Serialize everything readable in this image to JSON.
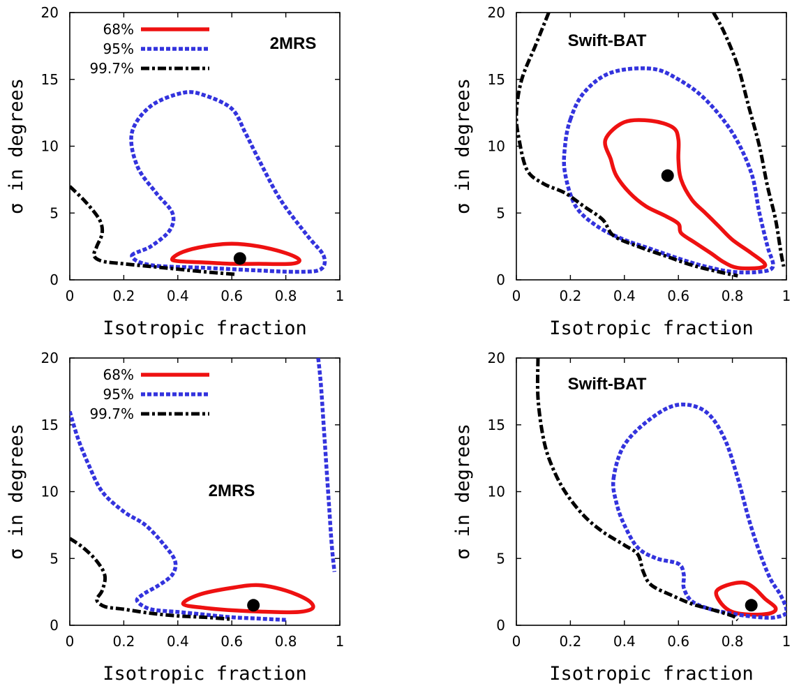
{
  "chart_data": [
    {
      "type": "contour",
      "title": "2MRS",
      "xlabel": "Isotropic fraction",
      "ylabel": "σ in degrees",
      "xlim": [
        0,
        1
      ],
      "ylim": [
        0,
        20
      ],
      "xticks": [
        "0",
        "0.2",
        "0.4",
        "0.6",
        "0.8",
        "1"
      ],
      "yticks": [
        "0",
        "5",
        "10",
        "15",
        "20"
      ],
      "legend": {
        "placement": "top-left",
        "entries": [
          "68%",
          "95%",
          "99.7%"
        ]
      },
      "colors": {
        "c68": "#ee1111",
        "c95": "#3333dd",
        "c997": "#000000"
      },
      "best_fit": [
        0.63,
        1.6
      ],
      "series": [
        {
          "name": "68%",
          "closed": true,
          "points": [
            [
              0.38,
              1.6
            ],
            [
              0.42,
              2.1
            ],
            [
              0.5,
              2.5
            ],
            [
              0.6,
              2.7
            ],
            [
              0.7,
              2.5
            ],
            [
              0.8,
              2.0
            ],
            [
              0.85,
              1.5
            ],
            [
              0.82,
              1.2
            ],
            [
              0.7,
              1.2
            ],
            [
              0.6,
              1.2
            ],
            [
              0.5,
              1.3
            ],
            [
              0.4,
              1.4
            ],
            [
              0.38,
              1.6
            ]
          ]
        },
        {
          "name": "95%",
          "closed": true,
          "points": [
            [
              0.23,
              1.8
            ],
            [
              0.3,
              2.5
            ],
            [
              0.37,
              3.7
            ],
            [
              0.38,
              5.0
            ],
            [
              0.32,
              6.5
            ],
            [
              0.25,
              8.5
            ],
            [
              0.23,
              11.0
            ],
            [
              0.3,
              13.0
            ],
            [
              0.42,
              14.0
            ],
            [
              0.5,
              13.8
            ],
            [
              0.6,
              12.8
            ],
            [
              0.65,
              11.0
            ],
            [
              0.7,
              9.0
            ],
            [
              0.78,
              6.0
            ],
            [
              0.88,
              3.3
            ],
            [
              0.94,
              1.8
            ],
            [
              0.93,
              0.8
            ],
            [
              0.85,
              0.6
            ],
            [
              0.7,
              0.7
            ],
            [
              0.5,
              0.9
            ],
            [
              0.3,
              1.1
            ],
            [
              0.23,
              1.8
            ]
          ]
        },
        {
          "name": "99.7%",
          "closed": false,
          "points": [
            [
              0.0,
              7.0
            ],
            [
              0.06,
              5.8
            ],
            [
              0.11,
              4.5
            ],
            [
              0.12,
              3.5
            ],
            [
              0.1,
              2.5
            ],
            [
              0.09,
              1.8
            ],
            [
              0.12,
              1.4
            ],
            [
              0.2,
              1.2
            ],
            [
              0.3,
              1.0
            ],
            [
              0.4,
              0.8
            ],
            [
              0.5,
              0.6
            ],
            [
              0.62,
              0.4
            ]
          ]
        }
      ]
    },
    {
      "type": "contour",
      "title": "Swift-BAT",
      "xlabel": "Isotropic fraction",
      "ylabel": "σ in degrees",
      "xlim": [
        0,
        1
      ],
      "ylim": [
        0,
        20
      ],
      "xticks": [
        "0",
        "0.2",
        "0.4",
        "0.6",
        "0.8",
        "1"
      ],
      "yticks": [
        "0",
        "5",
        "10",
        "15",
        "20"
      ],
      "legend": null,
      "colors": {
        "c68": "#ee1111",
        "c95": "#3333dd",
        "c997": "#000000"
      },
      "best_fit": [
        0.56,
        7.8
      ],
      "series": [
        {
          "name": "68%",
          "closed": true,
          "points": [
            [
              0.35,
              9.0
            ],
            [
              0.33,
              10.5
            ],
            [
              0.4,
              11.8
            ],
            [
              0.5,
              11.9
            ],
            [
              0.58,
              11.4
            ],
            [
              0.6,
              10.5
            ],
            [
              0.6,
              9.0
            ],
            [
              0.61,
              7.5
            ],
            [
              0.65,
              6.0
            ],
            [
              0.7,
              5.0
            ],
            [
              0.75,
              4.0
            ],
            [
              0.8,
              3.0
            ],
            [
              0.87,
              2.0
            ],
            [
              0.92,
              1.2
            ],
            [
              0.9,
              0.9
            ],
            [
              0.82,
              0.9
            ],
            [
              0.77,
              1.3
            ],
            [
              0.72,
              2.0
            ],
            [
              0.66,
              2.8
            ],
            [
              0.61,
              3.5
            ],
            [
              0.6,
              4.2
            ],
            [
              0.55,
              4.8
            ],
            [
              0.48,
              5.5
            ],
            [
              0.42,
              6.5
            ],
            [
              0.37,
              7.8
            ],
            [
              0.35,
              9.0
            ]
          ]
        },
        {
          "name": "95%",
          "closed": true,
          "points": [
            [
              0.2,
              12.0
            ],
            [
              0.25,
              14.0
            ],
            [
              0.35,
              15.5
            ],
            [
              0.5,
              15.8
            ],
            [
              0.6,
              15.0
            ],
            [
              0.7,
              13.5
            ],
            [
              0.8,
              11.0
            ],
            [
              0.87,
              8.0
            ],
            [
              0.9,
              5.0
            ],
            [
              0.93,
              2.5
            ],
            [
              0.95,
              1.0
            ],
            [
              0.9,
              0.6
            ],
            [
              0.8,
              0.6
            ],
            [
              0.7,
              1.0
            ],
            [
              0.6,
              1.6
            ],
            [
              0.5,
              2.3
            ],
            [
              0.4,
              3.0
            ],
            [
              0.3,
              4.0
            ],
            [
              0.22,
              5.5
            ],
            [
              0.18,
              8.0
            ],
            [
              0.18,
              10.0
            ],
            [
              0.2,
              12.0
            ]
          ]
        },
        {
          "name": "99.7%",
          "closed": false,
          "points": [
            [
              0.12,
              20.0
            ],
            [
              0.07,
              17.5
            ],
            [
              0.02,
              15.0
            ],
            [
              0.0,
              12.5
            ],
            [
              0.01,
              10.5
            ],
            [
              0.04,
              8.2
            ],
            [
              0.1,
              7.2
            ],
            [
              0.18,
              6.5
            ],
            [
              0.25,
              5.5
            ],
            [
              0.32,
              4.5
            ],
            [
              0.36,
              3.3
            ],
            [
              0.45,
              2.5
            ],
            [
              0.55,
              1.8
            ],
            [
              0.65,
              1.1
            ],
            [
              0.75,
              0.6
            ],
            [
              0.82,
              0.3
            ]
          ]
        },
        {
          "name": "99.7%",
          "closed": false,
          "points": [
            [
              0.73,
              20.0
            ],
            [
              0.77,
              18.5
            ],
            [
              0.82,
              16.0
            ],
            [
              0.86,
              13.0
            ],
            [
              0.9,
              10.0
            ],
            [
              0.93,
              7.0
            ],
            [
              0.96,
              4.5
            ],
            [
              0.98,
              2.0
            ],
            [
              0.99,
              1.0
            ]
          ]
        }
      ]
    },
    {
      "type": "contour",
      "title": "2MRS",
      "xlabel": "Isotropic fraction",
      "ylabel": "σ in degrees",
      "xlim": [
        0,
        1
      ],
      "ylim": [
        0,
        20
      ],
      "xticks": [
        "0",
        "0.2",
        "0.4",
        "0.6",
        "0.8",
        "1"
      ],
      "yticks": [
        "0",
        "5",
        "10",
        "15",
        "20"
      ],
      "legend": {
        "placement": "top-left",
        "entries": [
          "68%",
          "95%",
          "99.7%"
        ]
      },
      "colors": {
        "c68": "#ee1111",
        "c95": "#3333dd",
        "c997": "#000000"
      },
      "best_fit": [
        0.68,
        1.5
      ],
      "series": [
        {
          "name": "68%",
          "closed": true,
          "points": [
            [
              0.42,
              1.6
            ],
            [
              0.48,
              2.3
            ],
            [
              0.6,
              2.8
            ],
            [
              0.7,
              3.0
            ],
            [
              0.8,
              2.6
            ],
            [
              0.88,
              1.9
            ],
            [
              0.9,
              1.3
            ],
            [
              0.85,
              1.0
            ],
            [
              0.75,
              1.0
            ],
            [
              0.62,
              1.1
            ],
            [
              0.5,
              1.3
            ],
            [
              0.42,
              1.6
            ]
          ]
        },
        {
          "name": "95%",
          "closed": false,
          "points": [
            [
              0.0,
              16.0
            ],
            [
              0.03,
              14.0
            ],
            [
              0.07,
              12.0
            ],
            [
              0.12,
              10.0
            ],
            [
              0.2,
              8.5
            ],
            [
              0.28,
              7.5
            ],
            [
              0.35,
              6.0
            ],
            [
              0.39,
              4.8
            ],
            [
              0.38,
              3.8
            ],
            [
              0.33,
              3.0
            ],
            [
              0.27,
              2.3
            ],
            [
              0.25,
              1.8
            ],
            [
              0.3,
              1.2
            ],
            [
              0.4,
              1.0
            ],
            [
              0.5,
              0.8
            ],
            [
              0.6,
              0.6
            ],
            [
              0.7,
              0.5
            ],
            [
              0.8,
              0.4
            ]
          ]
        },
        {
          "name": "95%",
          "closed": false,
          "points": [
            [
              0.92,
              20.0
            ],
            [
              0.93,
              18.0
            ],
            [
              0.94,
              15.0
            ],
            [
              0.95,
              12.0
            ],
            [
              0.96,
              9.0
            ],
            [
              0.97,
              6.0
            ],
            [
              0.98,
              4.0
            ]
          ]
        },
        {
          "name": "99.7%",
          "closed": false,
          "points": [
            [
              0.0,
              6.5
            ],
            [
              0.05,
              5.8
            ],
            [
              0.1,
              4.8
            ],
            [
              0.13,
              3.7
            ],
            [
              0.12,
              2.6
            ],
            [
              0.1,
              1.9
            ],
            [
              0.13,
              1.4
            ],
            [
              0.2,
              1.2
            ],
            [
              0.3,
              0.9
            ],
            [
              0.4,
              0.7
            ],
            [
              0.5,
              0.6
            ],
            [
              0.6,
              0.45
            ]
          ]
        }
      ]
    },
    {
      "type": "contour",
      "title": "Swift-BAT",
      "xlabel": "Isotropic fraction",
      "ylabel": "σ in degrees",
      "xlim": [
        0,
        1
      ],
      "ylim": [
        0,
        20
      ],
      "xticks": [
        "0",
        "0.2",
        "0.4",
        "0.6",
        "0.8",
        "1"
      ],
      "yticks": [
        "0",
        "5",
        "10",
        "15",
        "20"
      ],
      "legend": null,
      "colors": {
        "c68": "#ee1111",
        "c95": "#3333dd",
        "c997": "#000000"
      },
      "best_fit": [
        0.87,
        1.5
      ],
      "series": [
        {
          "name": "68%",
          "closed": true,
          "points": [
            [
              0.74,
              2.5
            ],
            [
              0.78,
              3.0
            ],
            [
              0.84,
              3.2
            ],
            [
              0.88,
              2.8
            ],
            [
              0.92,
              2.0
            ],
            [
              0.96,
              1.3
            ],
            [
              0.94,
              0.9
            ],
            [
              0.87,
              0.8
            ],
            [
              0.8,
              1.0
            ],
            [
              0.76,
              1.6
            ],
            [
              0.74,
              2.5
            ]
          ]
        },
        {
          "name": "95%",
          "closed": true,
          "points": [
            [
              0.36,
              11.0
            ],
            [
              0.4,
              13.5
            ],
            [
              0.5,
              15.5
            ],
            [
              0.6,
              16.5
            ],
            [
              0.7,
              16.0
            ],
            [
              0.77,
              14.0
            ],
            [
              0.82,
              11.0
            ],
            [
              0.86,
              8.0
            ],
            [
              0.9,
              5.5
            ],
            [
              0.94,
              3.5
            ],
            [
              0.98,
              2.2
            ],
            [
              1.0,
              1.0
            ],
            [
              0.96,
              0.6
            ],
            [
              0.9,
              0.6
            ],
            [
              0.82,
              0.8
            ],
            [
              0.72,
              1.2
            ],
            [
              0.65,
              1.8
            ],
            [
              0.62,
              2.8
            ],
            [
              0.62,
              3.8
            ],
            [
              0.6,
              4.6
            ],
            [
              0.52,
              5.0
            ],
            [
              0.45,
              5.8
            ],
            [
              0.4,
              7.5
            ],
            [
              0.37,
              9.2
            ],
            [
              0.36,
              11.0
            ]
          ]
        },
        {
          "name": "99.7%",
          "closed": false,
          "points": [
            [
              0.08,
              20.0
            ],
            [
              0.08,
              17.0
            ],
            [
              0.1,
              14.0
            ],
            [
              0.13,
              12.0
            ],
            [
              0.18,
              10.0
            ],
            [
              0.25,
              8.2
            ],
            [
              0.32,
              7.0
            ],
            [
              0.4,
              6.0
            ],
            [
              0.45,
              5.3
            ],
            [
              0.47,
              4.0
            ],
            [
              0.5,
              3.0
            ],
            [
              0.58,
              2.2
            ],
            [
              0.65,
              1.6
            ],
            [
              0.72,
              1.2
            ],
            [
              0.8,
              0.7
            ],
            [
              0.82,
              0.4
            ]
          ]
        }
      ]
    }
  ]
}
